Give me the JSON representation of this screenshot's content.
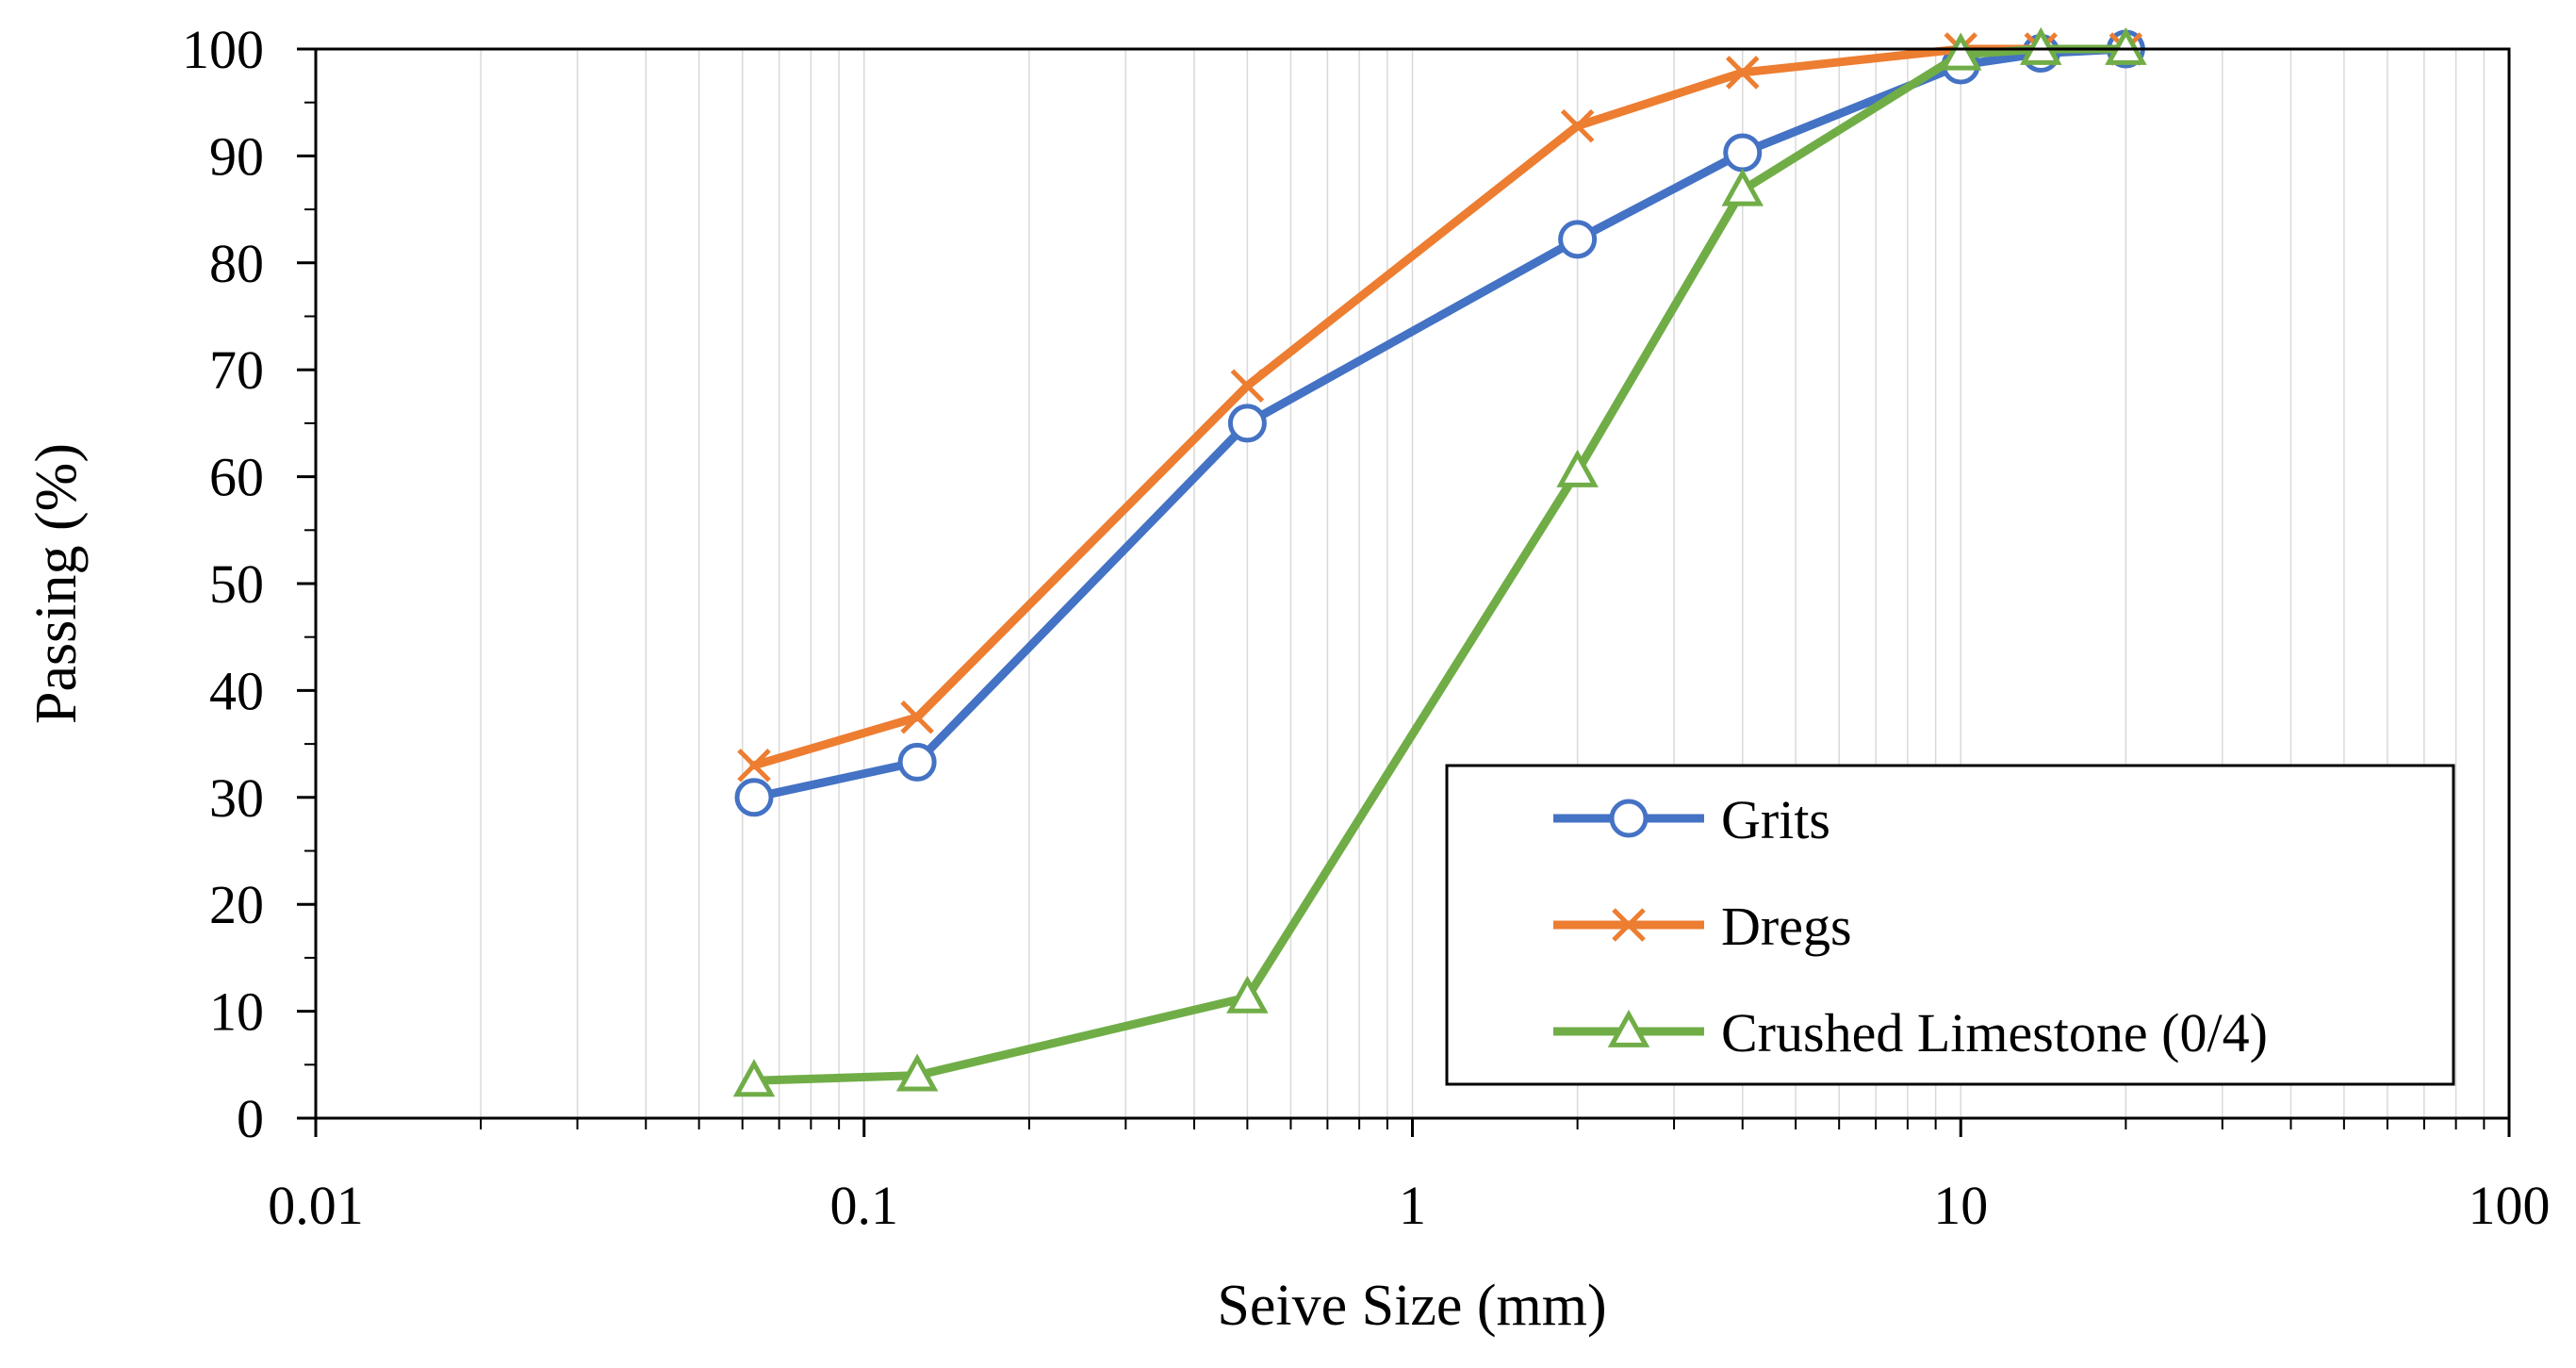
{
  "chart_data": {
    "type": "line",
    "title": "",
    "xlabel": "Seive Size (mm)",
    "ylabel": "Passing (%)",
    "xscale": "log",
    "xlim": [
      0.01,
      100
    ],
    "ylim": [
      0,
      100
    ],
    "x_ticks": [
      0.01,
      0.1,
      1,
      10,
      100
    ],
    "x_tick_labels": [
      "0.01",
      "0.1",
      "1",
      "10",
      "100"
    ],
    "y_ticks": [
      0,
      10,
      20,
      30,
      40,
      50,
      60,
      70,
      80,
      90,
      100
    ],
    "y_tick_labels": [
      "0",
      "10",
      "20",
      "30",
      "40",
      "50",
      "60",
      "70",
      "80",
      "90",
      "100"
    ],
    "grid": "vertical minor",
    "legend_position": "bottom-right",
    "series": [
      {
        "name": "Grits",
        "color": "#4472C4",
        "marker": "circle",
        "x": [
          0.063,
          0.125,
          0.5,
          2,
          4,
          10,
          14,
          20
        ],
        "values": [
          30,
          33.3,
          65,
          82.2,
          90.3,
          98.5,
          99.6,
          100
        ]
      },
      {
        "name": "Dregs",
        "color": "#ED7D31",
        "marker": "x",
        "x": [
          0.063,
          0.125,
          0.5,
          2,
          4,
          10,
          14,
          20
        ],
        "values": [
          33,
          37.5,
          68.5,
          92.8,
          97.8,
          100,
          100,
          100
        ]
      },
      {
        "name": "Crushed Limestone (0/4)",
        "color": "#70AD47",
        "marker": "triangle",
        "x": [
          0.063,
          0.125,
          0.5,
          2,
          4,
          10,
          14,
          20
        ],
        "values": [
          3.5,
          4,
          11.3,
          60.5,
          86.8,
          99.5,
          100,
          100
        ]
      }
    ]
  }
}
